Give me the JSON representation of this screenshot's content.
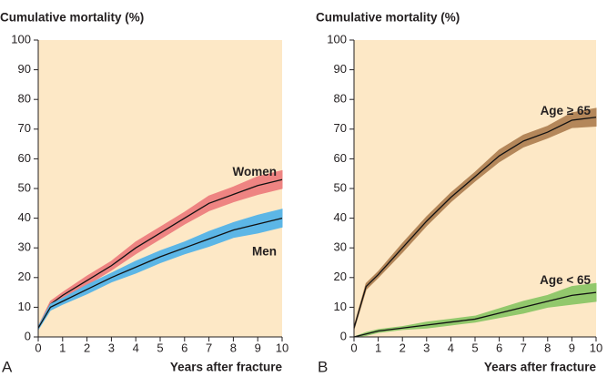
{
  "chart_data": [
    {
      "type": "line",
      "panel_label": "A",
      "title": "Cumulative mortality (%)",
      "x_label": "Years after fracture",
      "background": "#fde8c6",
      "xlim": [
        0,
        10
      ],
      "xticks": [
        0,
        1,
        2,
        3,
        4,
        5,
        6,
        7,
        8,
        9,
        10
      ],
      "ylim": [
        0,
        100
      ],
      "yticks": [
        0,
        10,
        20,
        30,
        40,
        50,
        60,
        70,
        80,
        90,
        100
      ],
      "x": [
        0,
        0.5,
        1,
        2,
        3,
        4,
        5,
        6,
        7,
        8,
        9,
        10
      ],
      "series": [
        {
          "name": "Women",
          "color": "#ee8482",
          "label_position": "above",
          "values": [
            3,
            11,
            14,
            19,
            24,
            30,
            35,
            40,
            45,
            48,
            51,
            53
          ],
          "lower": [
            2.5,
            10,
            13,
            17.5,
            22.5,
            28,
            33,
            38,
            42.5,
            45.5,
            48,
            50
          ],
          "upper": [
            3.5,
            12,
            15,
            20.5,
            25.5,
            32,
            37,
            42,
            47.5,
            50.5,
            54,
            56
          ]
        },
        {
          "name": "Men",
          "color": "#5cb6e6",
          "label_position": "below",
          "values": [
            3,
            10,
            12,
            16,
            20,
            23.5,
            27,
            30,
            33,
            36,
            38,
            40
          ],
          "lower": [
            2.5,
            9,
            11,
            14.5,
            18.5,
            21.5,
            25,
            28,
            30.5,
            33.5,
            35,
            37
          ],
          "upper": [
            3.5,
            11,
            13,
            17.5,
            21.5,
            25.5,
            29,
            32,
            35.5,
            38.5,
            41,
            43
          ]
        }
      ]
    },
    {
      "type": "line",
      "panel_label": "B",
      "title": "Cumulative mortality (%)",
      "x_label": "Years after fracture",
      "background": "#fde8c6",
      "xlim": [
        0,
        10
      ],
      "xticks": [
        0,
        1,
        2,
        3,
        4,
        5,
        6,
        7,
        8,
        9,
        10
      ],
      "ylim": [
        0,
        100
      ],
      "yticks": [
        0,
        10,
        20,
        30,
        40,
        50,
        60,
        70,
        80,
        90,
        100
      ],
      "x": [
        0,
        0.5,
        1,
        2,
        3,
        4,
        5,
        6,
        7,
        8,
        9,
        10
      ],
      "series": [
        {
          "name": "Age ≥ 65",
          "color": "#b4875a",
          "label_position": "above",
          "values": [
            3,
            17,
            21,
            30,
            39,
            47,
            54,
            61,
            66,
            69,
            73,
            74
          ],
          "lower": [
            2.5,
            16,
            20,
            28.5,
            37.5,
            45.5,
            52.5,
            59,
            64,
            67,
            70.5,
            71
          ],
          "upper": [
            3.5,
            18,
            22,
            31.5,
            40.5,
            48.5,
            55.5,
            63,
            68,
            71,
            75.5,
            77
          ]
        },
        {
          "name": "Age < 65",
          "color": "#92c86c",
          "label_position": "above",
          "values": [
            0,
            1,
            2,
            3,
            4,
            5,
            6,
            8,
            10,
            12,
            14,
            15
          ],
          "lower": [
            0,
            0.5,
            1.5,
            2.5,
            3,
            4,
            5,
            6.5,
            8,
            10,
            11,
            12
          ],
          "upper": [
            0,
            1.5,
            2.5,
            3.5,
            5,
            6,
            7,
            9.5,
            12,
            14,
            17,
            18
          ]
        }
      ]
    }
  ]
}
